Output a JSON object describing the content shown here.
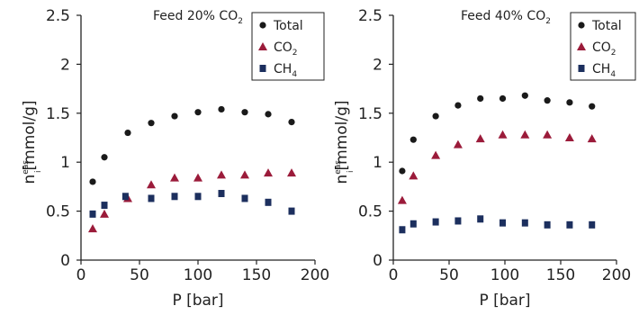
{
  "chart_data": [
    {
      "type": "scatter",
      "title": "Feed 20% CO",
      "title_subscript": "2",
      "xlabel": "P [bar]",
      "ylabel": {
        "base": "n",
        "superscript": "eas",
        "subscript": "i",
        "unit": "[mmol/g]"
      },
      "xlim": [
        0,
        200
      ],
      "ylim": [
        0,
        2.5
      ],
      "xticks": [
        "0",
        "50",
        "100",
        "150",
        "200"
      ],
      "yticks": [
        "0",
        "0.5",
        "1",
        "1.5",
        "2",
        "2.5"
      ],
      "grid": false,
      "legend_position": "top-right",
      "series": [
        {
          "name": "Total",
          "marker": "circle",
          "color": "#1a1a1a",
          "x": [
            10,
            20,
            40,
            60,
            80,
            100,
            120,
            140,
            160,
            180
          ],
          "y": [
            0.8,
            1.05,
            1.3,
            1.4,
            1.47,
            1.51,
            1.54,
            1.51,
            1.49,
            1.41
          ]
        },
        {
          "name": "CO",
          "name_subscript": "2",
          "marker": "triangle",
          "color": "#9b1b3a",
          "x": [
            10,
            20,
            40,
            60,
            80,
            100,
            120,
            140,
            160,
            180
          ],
          "y": [
            0.32,
            0.47,
            0.63,
            0.77,
            0.84,
            0.84,
            0.87,
            0.87,
            0.89,
            0.89
          ]
        },
        {
          "name": "CH",
          "name_subscript": "4",
          "marker": "square",
          "color": "#1c2f5e",
          "x": [
            10,
            20,
            38,
            60,
            80,
            100,
            120,
            140,
            160,
            180
          ],
          "y": [
            0.47,
            0.56,
            0.65,
            0.63,
            0.65,
            0.65,
            0.68,
            0.63,
            0.59,
            0.5
          ]
        }
      ]
    },
    {
      "type": "scatter",
      "title": "Feed 40% CO",
      "title_subscript": "2",
      "xlabel": "P [bar]",
      "ylabel": {
        "base": "n",
        "superscript": "eas",
        "subscript": "i",
        "unit": "[mmol/g]"
      },
      "xlim": [
        0,
        200
      ],
      "ylim": [
        0,
        2.5
      ],
      "xticks": [
        "0",
        "50",
        "100",
        "150",
        "200"
      ],
      "yticks": [
        "0",
        "0.5",
        "1",
        "1.5",
        "2",
        "2.5"
      ],
      "grid": false,
      "legend_position": "top-right",
      "series": [
        {
          "name": "Total",
          "marker": "circle",
          "color": "#1a1a1a",
          "x": [
            8,
            18,
            38,
            58,
            78,
            98,
            118,
            138,
            158,
            178
          ],
          "y": [
            0.91,
            1.23,
            1.47,
            1.58,
            1.65,
            1.65,
            1.68,
            1.63,
            1.61,
            1.57
          ]
        },
        {
          "name": "CO",
          "name_subscript": "2",
          "marker": "triangle",
          "color": "#9b1b3a",
          "x": [
            8,
            18,
            38,
            58,
            78,
            98,
            118,
            138,
            158,
            178
          ],
          "y": [
            0.61,
            0.86,
            1.07,
            1.18,
            1.24,
            1.28,
            1.28,
            1.28,
            1.25,
            1.24
          ]
        },
        {
          "name": "CH",
          "name_subscript": "4",
          "marker": "square",
          "color": "#1c2f5e",
          "x": [
            8,
            18,
            38,
            58,
            78,
            98,
            118,
            138,
            158,
            178
          ],
          "y": [
            0.31,
            0.37,
            0.39,
            0.4,
            0.42,
            0.38,
            0.38,
            0.36,
            0.36,
            0.36
          ]
        }
      ]
    }
  ]
}
